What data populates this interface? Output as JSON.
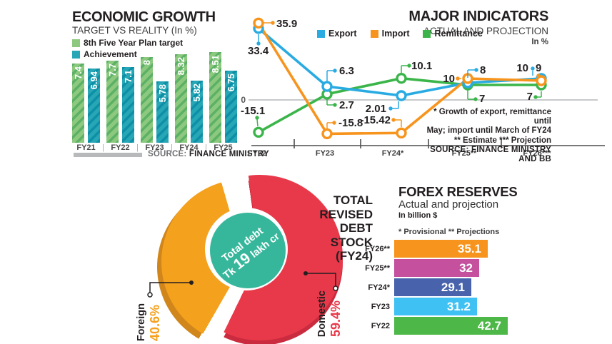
{
  "chart_data": [
    {
      "id": "economic-growth",
      "type": "bar",
      "title": "ECONOMIC GROWTH",
      "subtitle": "TARGET VS REALITY (In %)",
      "categories": [
        "FY21",
        "FY22",
        "FY23",
        "FY24",
        "FY25"
      ],
      "series": [
        {
          "name": "8th Five Year Plan target",
          "color": "#8cc97e",
          "stripe_color": "#5cb167",
          "values": [
            7.4,
            7.7,
            8,
            8.32,
            8.51
          ]
        },
        {
          "name": "Achievement",
          "color": "#27a6b5",
          "stripe_color": "#0d90a7",
          "values": [
            6.94,
            7.1,
            5.78,
            5.82,
            6.75
          ]
        }
      ],
      "ylim": [
        0,
        9
      ],
      "grid": false,
      "source_prefix": "SOURCE:",
      "source": "FINANCE MINISTRY"
    },
    {
      "id": "major-indicators",
      "type": "line",
      "title": "MAJOR INDICATORS",
      "subtitle": "ACTUAL AND PROJECTION",
      "unit_label": "In %",
      "categories": [
        "FY22",
        "FY23",
        "FY24*",
        "FY25**",
        "FY26***"
      ],
      "series": [
        {
          "name": "Export",
          "color": "#29abe2",
          "values": [
            33.4,
            6.3,
            2.01,
            8,
            10
          ]
        },
        {
          "name": "Import",
          "color": "#f7941d",
          "values": [
            35.9,
            -15.8,
            -15.42,
            10,
            9
          ]
        },
        {
          "name": "Remittance",
          "color": "#3bb54a",
          "values": [
            -15.1,
            2.7,
            10.1,
            7,
            7
          ]
        }
      ],
      "ylim": [
        -20,
        40
      ],
      "zero_label": "0",
      "legend_position": "top",
      "grid": false,
      "footnotes": [
        "* Growth of export, remittance until",
        "May; import until March of FY24",
        "** Estimate *** Projection"
      ],
      "source": "SOURCE: FINANCE MINISTRY AND BB"
    },
    {
      "id": "debt-stock",
      "type": "pie",
      "title": "TOTAL REVISED DEBT STOCK (FY24)",
      "title_lines": [
        "TOTAL",
        "REVISED",
        "DEBT",
        "STOCK",
        "(FY24)"
      ],
      "center": {
        "line1": "Total debt",
        "prefix": "Tk",
        "amount": "19",
        "suffix": "lakh cr",
        "color": "#36b79b"
      },
      "slices": [
        {
          "label": "Domestic",
          "value": 59.4,
          "display": "59.4%",
          "color": "#e8394a",
          "shade": "#ca2b3e"
        },
        {
          "label": "Foreign",
          "value": 40.6,
          "display": "40.6%",
          "color": "#f4a11e",
          "shade": "#d0861b"
        }
      ]
    },
    {
      "id": "forex-reserves",
      "type": "bar",
      "orientation": "horizontal",
      "title": "FOREX RESERVES",
      "subtitle": "Actual and projection",
      "unit_label": "In billion $",
      "note": "* Provisional ** Projections",
      "categories": [
        "FY26**",
        "FY25**",
        "FY24*",
        "FY23",
        "FY22"
      ],
      "values": [
        35.1,
        32,
        29.1,
        31.2,
        42.7
      ],
      "colors": [
        "#f7941d",
        "#c4509e",
        "#4863ac",
        "#3fc2f3",
        "#4db848"
      ],
      "xlim": [
        0,
        45
      ]
    }
  ]
}
